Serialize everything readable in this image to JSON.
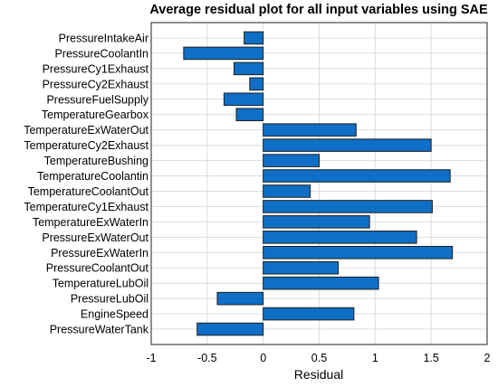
{
  "chart_data": {
    "type": "bar",
    "orientation": "horizontal",
    "title": "Average residual plot for all input variables using SAE",
    "xlabel": "Residual",
    "ylabel": "",
    "xlim": [
      -1,
      2
    ],
    "xticks": [
      -1,
      -0.5,
      0,
      0.5,
      1,
      1.5,
      2
    ],
    "xtick_labels": [
      "-1",
      "-0.5",
      "0",
      "0.5",
      "1",
      "1.5",
      "2"
    ],
    "grid": true,
    "bar_color": "#0F6FC6",
    "categories": [
      "PressureIntakeAir",
      "PressureCoolantIn",
      "PressureCy1Exhaust",
      "PressureCy2Exhaust",
      "PressureFuelSupply",
      "TemperatureGearbox",
      "TemperatureExWaterOut",
      "TemperatureCy2Exhaust",
      "TemperatureBushing",
      "TemperatureCoolantin",
      "TemperatureCoolantOut",
      "TemperatureCy1Exhaust",
      "TemperatureExWaterIn",
      "PressureExWaterOut",
      "PressureExWaterIn",
      "PressureCoolantOut",
      "TemperatureLubOil",
      "PressureLubOil",
      "EngineSpeed",
      "PressureWaterTank"
    ],
    "values": [
      -0.17,
      -0.71,
      -0.26,
      -0.12,
      -0.35,
      -0.24,
      0.83,
      1.5,
      0.5,
      1.67,
      0.42,
      1.51,
      0.95,
      1.37,
      1.69,
      0.67,
      1.03,
      -0.41,
      0.81,
      -0.59
    ]
  }
}
